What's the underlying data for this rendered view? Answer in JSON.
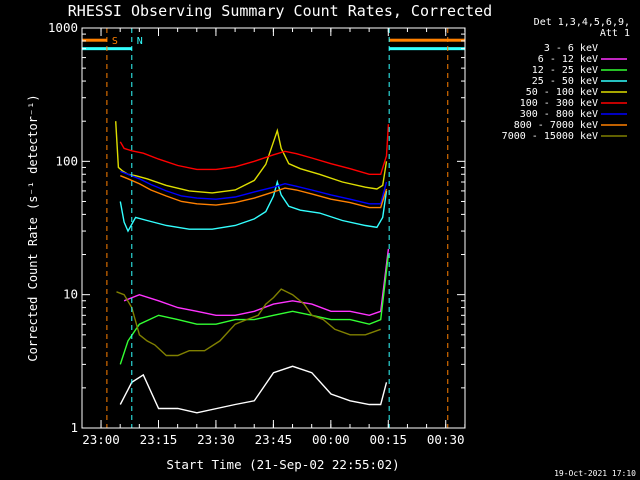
{
  "chart_data": {
    "type": "line",
    "title": "RHESSI Observing Summary Count Rates, Corrected",
    "xlabel": "Start Time (21-Sep-02 22:55:02)",
    "ylabel": "Corrected Count Rate (s⁻¹ detector⁻¹)",
    "y_scale": "log",
    "ylim": [
      1,
      1000
    ],
    "x_unit": "minutes since 22:55:02",
    "xlim": [
      0,
      100
    ],
    "x_ticks": [
      {
        "label": "23:00",
        "x": 4.97
      },
      {
        "label": "23:15",
        "x": 19.97
      },
      {
        "label": "23:30",
        "x": 34.97
      },
      {
        "label": "23:45",
        "x": 49.97
      },
      {
        "label": "00:00",
        "x": 64.97
      },
      {
        "label": "00:15",
        "x": 79.97
      },
      {
        "label": "00:30",
        "x": 94.97
      }
    ],
    "y_ticks": [
      {
        "label": "1",
        "y": 1
      },
      {
        "label": "10",
        "y": 10
      },
      {
        "label": "100",
        "y": 100
      },
      {
        "label": "1000",
        "y": 1000
      }
    ],
    "legend_header": [
      "Det 1,3,4,5,6,9,",
      "Att 1"
    ],
    "legend_placement": "right",
    "series": [
      {
        "name": "3 - 6 keV",
        "color": "#000000",
        "x": [
          10,
          13,
          16,
          20,
          25,
          30,
          40,
          45,
          50,
          55,
          60,
          65,
          70,
          75,
          78,
          79.5
        ],
        "y": [
          1.5,
          2.2,
          2.5,
          1.4,
          1.4,
          1.3,
          1.5,
          1.6,
          2.6,
          2.9,
          2.6,
          1.8,
          1.6,
          1.5,
          1.5,
          2.2
        ]
      },
      {
        "name": "6 - 12 keV",
        "color": "#ff33ff",
        "x": [
          11,
          15,
          20,
          25,
          30,
          35,
          40,
          45,
          50,
          55,
          60,
          65,
          70,
          75,
          78,
          80
        ],
        "y": [
          9,
          10,
          9,
          8,
          7.5,
          7,
          7,
          7.5,
          8.5,
          9,
          8.5,
          7.5,
          7.5,
          7,
          7.5,
          22
        ]
      },
      {
        "name": "12 - 25 keV",
        "color": "#33ff33",
        "x": [
          10,
          12,
          15,
          20,
          25,
          30,
          35,
          40,
          45,
          50,
          55,
          60,
          65,
          70,
          75,
          78,
          80
        ],
        "y": [
          3,
          4.5,
          6,
          7,
          6.5,
          6,
          6,
          6.5,
          6.5,
          7,
          7.5,
          7,
          6.5,
          6.5,
          6,
          6.5,
          20
        ]
      },
      {
        "name": "25 - 50 keV",
        "color": "#33ffff",
        "x": [
          10,
          11,
          12,
          14,
          17,
          22,
          28,
          34,
          40,
          45,
          48,
          50,
          51,
          52,
          54,
          57,
          62,
          68,
          74,
          77,
          78.5,
          79.5
        ],
        "y": [
          50,
          35,
          30,
          38,
          36,
          33,
          31,
          31,
          33,
          37,
          42,
          55,
          70,
          56,
          46,
          43,
          41,
          36,
          33,
          32,
          38,
          60
        ]
      },
      {
        "name": "50 - 100 keV",
        "color": "#dddd00",
        "x": [
          8.8,
          9.5,
          10.5,
          12,
          14,
          17,
          22,
          28,
          34,
          40,
          45,
          48,
          50,
          51,
          52,
          54,
          57,
          62,
          68,
          74,
          77,
          78.5,
          79.5
        ],
        "y": [
          200,
          90,
          85,
          80,
          78,
          74,
          66,
          60,
          58,
          61,
          72,
          95,
          140,
          170,
          125,
          96,
          88,
          80,
          70,
          64,
          62,
          66,
          100
        ]
      },
      {
        "name": "100 - 300 keV",
        "color": "#ff0000",
        "x": [
          10,
          11,
          13,
          16,
          20,
          25,
          30,
          35,
          40,
          45,
          50,
          53,
          56,
          60,
          65,
          70,
          75,
          78,
          79.5,
          80
        ],
        "y": [
          140,
          125,
          120,
          115,
          104,
          93,
          87,
          87,
          91,
          100,
          112,
          119,
          114,
          106,
          96,
          88,
          80,
          80,
          110,
          190
        ]
      },
      {
        "name": "300 - 800 keV",
        "color": "#0000ff",
        "x": [
          10,
          12,
          15,
          18,
          22,
          26,
          30,
          35,
          40,
          45,
          50,
          53,
          56,
          60,
          65,
          70,
          75,
          78,
          79.5
        ],
        "y": [
          84,
          80,
          74,
          67,
          60,
          55,
          53,
          52,
          54,
          59,
          64,
          68,
          65,
          61,
          56,
          52,
          48,
          48,
          70
        ]
      },
      {
        "name": "800 - 7000 keV",
        "color": "#ff8000",
        "x": [
          10,
          12,
          15,
          18,
          22,
          26,
          30,
          35,
          40,
          45,
          50,
          53,
          56,
          60,
          65,
          70,
          75,
          78,
          79.5
        ],
        "y": [
          78,
          74,
          68,
          61,
          55,
          50,
          48,
          47,
          49,
          53,
          59,
          63,
          61,
          57,
          52,
          49,
          45,
          45,
          62
        ]
      },
      {
        "name": "7000 - 15000 keV",
        "color": "#808000",
        "x": [
          9,
          11,
          13,
          15,
          17,
          19,
          22,
          25,
          28,
          32,
          36,
          40,
          43,
          46,
          48,
          50,
          52,
          55,
          58,
          60,
          63,
          66,
          70,
          74,
          78
        ],
        "y": [
          10.5,
          10,
          8,
          5,
          4.5,
          4.2,
          3.5,
          3.5,
          3.8,
          3.8,
          4.5,
          6,
          6.5,
          7,
          8.5,
          9.5,
          11,
          10,
          8.5,
          7,
          6.5,
          5.5,
          5,
          5,
          5.5
        ]
      }
    ],
    "markers": [
      {
        "label": "S",
        "x": 6.5,
        "color": "#ff8000"
      },
      {
        "label": "N",
        "x": 13.0,
        "color": "#33ffff"
      },
      {
        "label": "",
        "x": 80.2,
        "color": "#33ffff"
      },
      {
        "label": "",
        "x": 95.5,
        "color": "#ff8000"
      }
    ],
    "flag_bars": [
      {
        "color": "#ff8000",
        "value": 810,
        "ranges": [
          [
            0,
            6.5
          ],
          [
            80.2,
            100
          ]
        ]
      },
      {
        "color": "#33ffff",
        "value": 700,
        "ranges": [
          [
            0,
            13.0
          ],
          [
            80.2,
            100
          ]
        ]
      }
    ],
    "timestamp": "19-Oct-2021 17:10",
    "grid": false
  }
}
